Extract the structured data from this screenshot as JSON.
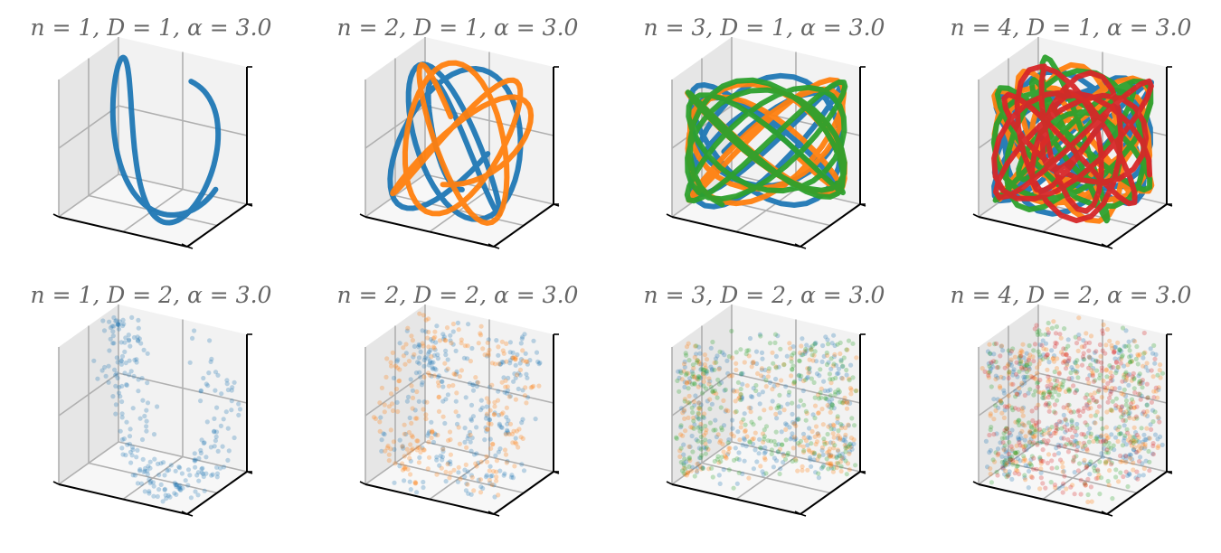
{
  "colors": {
    "series": [
      "#1f77b4",
      "#ff7f0e",
      "#2ca02c",
      "#d62728"
    ],
    "pane_back": "#f2f2f2",
    "pane_side": "#e6e6e6",
    "pane_floor": "#f7f7f7",
    "grid": "#b0b0b0",
    "axis": "#000000",
    "title": "#666666"
  },
  "chart_data": [
    {
      "type": "scatter",
      "subtype": "3d-curve",
      "title": "n = 1, D = 1, α = 3.0",
      "n": 1,
      "D": 1,
      "alpha": 3.0,
      "grid": true,
      "tick_labels": false
    },
    {
      "type": "scatter",
      "subtype": "3d-curve",
      "title": "n = 2, D = 1, α = 3.0",
      "n": 2,
      "D": 1,
      "alpha": 3.0,
      "grid": true,
      "tick_labels": false
    },
    {
      "type": "scatter",
      "subtype": "3d-curve",
      "title": "n = 3, D = 1, α = 3.0",
      "n": 3,
      "D": 1,
      "alpha": 3.0,
      "grid": true,
      "tick_labels": false
    },
    {
      "type": "scatter",
      "subtype": "3d-curve",
      "title": "n = 4, D = 1, α = 3.0",
      "n": 4,
      "D": 1,
      "alpha": 3.0,
      "grid": true,
      "tick_labels": false
    },
    {
      "type": "scatter",
      "subtype": "3d-cloud",
      "title": "n = 1, D = 2, α = 3.0",
      "n": 1,
      "D": 2,
      "alpha": 3.0,
      "grid": true,
      "tick_labels": false
    },
    {
      "type": "scatter",
      "subtype": "3d-cloud",
      "title": "n = 2, D = 2, α = 3.0",
      "n": 2,
      "D": 2,
      "alpha": 3.0,
      "grid": true,
      "tick_labels": false
    },
    {
      "type": "scatter",
      "subtype": "3d-cloud",
      "title": "n = 3, D = 2, α = 3.0",
      "n": 3,
      "D": 2,
      "alpha": 3.0,
      "grid": true,
      "tick_labels": false
    },
    {
      "type": "scatter",
      "subtype": "3d-cloud",
      "title": "n = 4, D = 2, α = 3.0",
      "n": 4,
      "D": 2,
      "alpha": 3.0,
      "grid": true,
      "tick_labels": false
    }
  ]
}
